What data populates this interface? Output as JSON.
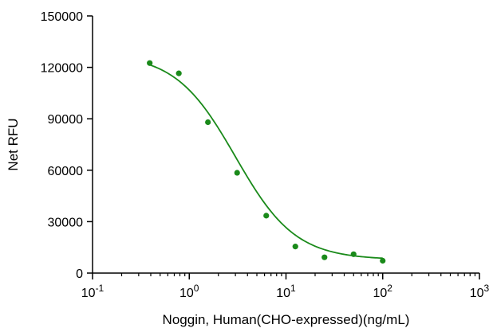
{
  "chart_data": {
    "type": "scatter",
    "title": "",
    "xlabel": "Noggin, Human(CHO-expressed)(ng/mL)",
    "ylabel": "Net RFU",
    "x_scale": "log",
    "xlim": [
      0.1,
      1000
    ],
    "ylim": [
      0,
      150000
    ],
    "x_ticks": [
      {
        "value": 0.1,
        "base": "10",
        "exp": "-1"
      },
      {
        "value": 1,
        "base": "10",
        "exp": "0"
      },
      {
        "value": 10,
        "base": "10",
        "exp": "1"
      },
      {
        "value": 100,
        "base": "10",
        "exp": "2"
      },
      {
        "value": 1000,
        "base": "10",
        "exp": "3"
      }
    ],
    "y_ticks": [
      {
        "value": 0,
        "label": "0"
      },
      {
        "value": 30000,
        "label": "30000"
      },
      {
        "value": 60000,
        "label": "60000"
      },
      {
        "value": 90000,
        "label": "90000"
      },
      {
        "value": 120000,
        "label": "120000"
      },
      {
        "value": 150000,
        "label": "150000"
      }
    ],
    "series": [
      {
        "color": "#1a8a1a",
        "x": [
          0.39,
          0.78,
          1.56,
          3.125,
          6.25,
          12.5,
          25,
          50,
          100
        ],
        "y": [
          122500,
          116500,
          88000,
          58500,
          33500,
          15500,
          9200,
          11000,
          7200
        ],
        "fit": {
          "model": "4PL",
          "top": 128000,
          "bottom": 7800,
          "ec50": 3.0,
          "hill": 1.4,
          "x_range": [
            0.39,
            100
          ]
        }
      }
    ],
    "grid": false,
    "legend": "none"
  }
}
